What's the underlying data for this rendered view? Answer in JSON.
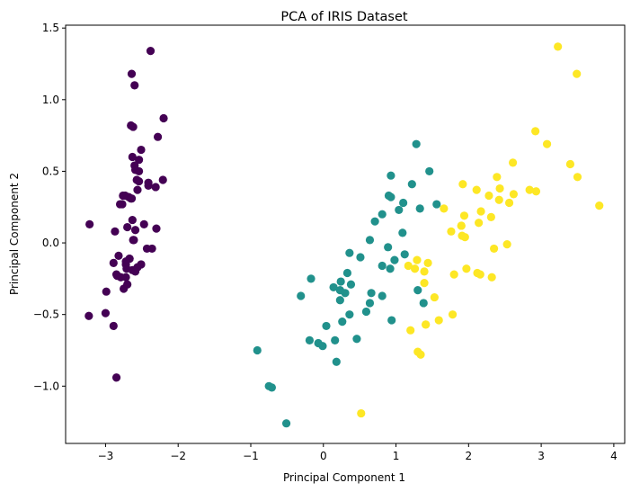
{
  "chart_data": {
    "type": "scatter",
    "title": "PCA of IRIS Dataset",
    "xlabel": "Principal Component 1",
    "ylabel": "Principal Component 2",
    "xlim": [
      -3.55,
      4.15
    ],
    "ylim": [
      -1.4,
      1.52
    ],
    "xticks": [
      -3,
      -2,
      -1,
      0,
      1,
      2,
      3,
      4
    ],
    "xtick_labels": [
      "−3",
      "−2",
      "−1",
      "0",
      "1",
      "2",
      "3",
      "4"
    ],
    "yticks": [
      -1.0,
      -0.5,
      0.0,
      0.5,
      1.0,
      1.5
    ],
    "ytick_labels": [
      "−1.0",
      "−0.5",
      "0.0",
      "0.5",
      "1.0",
      "1.5"
    ],
    "grid": false,
    "legend": "none",
    "series": [
      {
        "color": "#440154",
        "points": [
          [
            -2.68,
            0.32
          ],
          [
            -2.71,
            -0.18
          ],
          [
            -2.89,
            -0.14
          ],
          [
            -2.75,
            -0.32
          ],
          [
            -2.73,
            0.33
          ],
          [
            -2.28,
            0.74
          ],
          [
            -2.82,
            -0.09
          ],
          [
            -2.63,
            0.16
          ],
          [
            -2.89,
            -0.58
          ],
          [
            -2.67,
            -0.11
          ],
          [
            -2.51,
            0.65
          ],
          [
            -2.61,
            0.02
          ],
          [
            -2.79,
            -0.24
          ],
          [
            -3.23,
            -0.51
          ],
          [
            -2.64,
            1.18
          ],
          [
            -2.38,
            1.34
          ],
          [
            -2.62,
            0.81
          ],
          [
            -2.65,
            0.31
          ],
          [
            -2.2,
            0.87
          ],
          [
            -2.59,
            0.51
          ],
          [
            -2.31,
            0.39
          ],
          [
            -2.54,
            0.43
          ],
          [
            -3.22,
            0.13
          ],
          [
            -2.3,
            0.1
          ],
          [
            -2.36,
            -0.04
          ],
          [
            -2.51,
            -0.15
          ],
          [
            -2.47,
            0.13
          ],
          [
            -2.56,
            0.37
          ],
          [
            -2.64,
            0.31
          ],
          [
            -2.63,
            -0.19
          ],
          [
            -2.59,
            -0.2
          ],
          [
            -2.41,
            0.42
          ],
          [
            -2.65,
            0.82
          ],
          [
            -2.6,
            1.1
          ],
          [
            -2.67,
            -0.11
          ],
          [
            -2.87,
            0.08
          ],
          [
            -2.63,
            0.6
          ],
          [
            -2.8,
            0.27
          ],
          [
            -2.99,
            -0.34
          ],
          [
            -2.59,
            0.09
          ],
          [
            -2.77,
            0.27
          ],
          [
            -2.85,
            -0.94
          ],
          [
            -3.0,
            -0.49
          ],
          [
            -2.41,
            0.4
          ],
          [
            -2.21,
            0.44
          ],
          [
            -2.72,
            -0.24
          ],
          [
            -2.54,
            0.5
          ],
          [
            -2.84,
            -0.23
          ],
          [
            -2.54,
            0.58
          ],
          [
            -2.7,
            0.11
          ],
          [
            -2.62,
            0.02
          ],
          [
            -2.57,
            0.44
          ],
          [
            -2.72,
            -0.15
          ],
          [
            -2.76,
            0.33
          ],
          [
            -2.85,
            -0.22
          ],
          [
            -2.43,
            -0.04
          ],
          [
            -2.7,
            -0.29
          ],
          [
            -2.56,
            -0.17
          ],
          [
            -2.6,
            0.54
          ],
          [
            -2.72,
            -0.13
          ]
        ]
      },
      {
        "color": "#21918c",
        "points": [
          [
            1.28,
            0.69
          ],
          [
            0.93,
            0.32
          ],
          [
            1.46,
            0.5
          ],
          [
            0.18,
            -0.83
          ],
          [
            1.09,
            0.07
          ],
          [
            0.64,
            -0.42
          ],
          [
            1.1,
            0.28
          ],
          [
            -0.75,
            -1.0
          ],
          [
            1.04,
            0.23
          ],
          [
            -0.01,
            -0.72
          ],
          [
            -0.51,
            -1.26
          ],
          [
            0.51,
            -0.1
          ],
          [
            0.26,
            -0.55
          ],
          [
            0.98,
            -0.12
          ],
          [
            -0.17,
            -0.25
          ],
          [
            0.93,
            0.47
          ],
          [
            0.66,
            -0.35
          ],
          [
            0.23,
            -0.33
          ],
          [
            0.94,
            -0.54
          ],
          [
            0.04,
            -0.58
          ],
          [
            1.12,
            -0.08
          ],
          [
            0.36,
            -0.07
          ],
          [
            1.3,
            -0.33
          ],
          [
            0.92,
            -0.18
          ],
          [
            0.71,
            0.15
          ],
          [
            0.9,
            0.33
          ],
          [
            1.33,
            0.24
          ],
          [
            1.56,
            0.27
          ],
          [
            0.81,
            -0.16
          ],
          [
            -0.31,
            -0.37
          ],
          [
            -0.07,
            -0.7
          ],
          [
            -0.19,
            -0.68
          ],
          [
            0.14,
            -0.31
          ],
          [
            1.38,
            -0.42
          ],
          [
            0.59,
            -0.48
          ],
          [
            0.81,
            0.2
          ],
          [
            1.22,
            0.41
          ],
          [
            0.81,
            -0.37
          ],
          [
            0.24,
            -0.27
          ],
          [
            0.16,
            -0.68
          ],
          [
            0.46,
            -0.67
          ],
          [
            0.89,
            -0.03
          ],
          [
            0.23,
            -0.4
          ],
          [
            -0.71,
            -1.01
          ],
          [
            0.36,
            -0.5
          ],
          [
            0.33,
            -0.21
          ],
          [
            0.38,
            -0.29
          ],
          [
            0.64,
            0.02
          ],
          [
            -0.91,
            -0.75
          ],
          [
            0.3,
            -0.35
          ]
        ]
      },
      {
        "color": "#fde725",
        "points": [
          [
            2.53,
            -0.01
          ],
          [
            1.41,
            -0.57
          ],
          [
            2.62,
            0.34
          ],
          [
            1.97,
            -0.18
          ],
          [
            2.35,
            -0.04
          ],
          [
            3.4,
            0.55
          ],
          [
            0.52,
            -1.19
          ],
          [
            2.93,
            0.36
          ],
          [
            2.32,
            -0.24
          ],
          [
            2.92,
            0.78
          ],
          [
            1.66,
            0.24
          ],
          [
            1.8,
            -0.22
          ],
          [
            2.17,
            0.22
          ],
          [
            1.34,
            -0.78
          ],
          [
            1.59,
            -0.54
          ],
          [
            1.9,
            0.12
          ],
          [
            1.95,
            0.04
          ],
          [
            3.49,
            1.18
          ],
          [
            3.8,
            0.26
          ],
          [
            1.3,
            -0.76
          ],
          [
            2.43,
            0.38
          ],
          [
            1.2,
            -0.61
          ],
          [
            3.5,
            0.46
          ],
          [
            1.39,
            -0.2
          ],
          [
            2.28,
            0.33
          ],
          [
            2.61,
            0.56
          ],
          [
            1.26,
            -0.18
          ],
          [
            1.29,
            -0.12
          ],
          [
            2.12,
            -0.21
          ],
          [
            2.39,
            0.46
          ],
          [
            2.84,
            0.37
          ],
          [
            3.23,
            1.37
          ],
          [
            2.16,
            -0.22
          ],
          [
            1.44,
            -0.14
          ],
          [
            1.78,
            -0.5
          ],
          [
            3.08,
            0.69
          ],
          [
            2.14,
            0.14
          ],
          [
            1.91,
            0.05
          ],
          [
            1.17,
            -0.16
          ],
          [
            2.11,
            0.37
          ],
          [
            2.31,
            0.18
          ],
          [
            1.92,
            0.41
          ],
          [
            1.41,
            -0.57
          ],
          [
            2.56,
            0.28
          ],
          [
            2.42,
            0.3
          ],
          [
            1.94,
            0.19
          ],
          [
            1.53,
            -0.38
          ],
          [
            1.76,
            0.08
          ],
          [
            1.9,
            0.12
          ],
          [
            1.39,
            -0.28
          ]
        ]
      }
    ]
  }
}
